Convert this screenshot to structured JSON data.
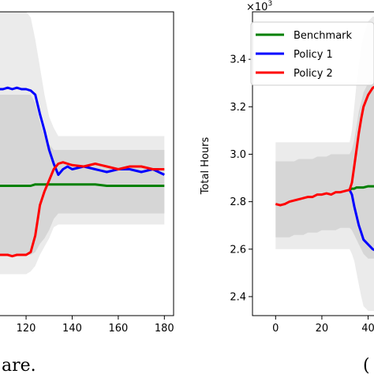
{
  "chart_data": [
    {
      "type": "line",
      "panel": "left",
      "title": "",
      "xlabel": "",
      "ylabel": "",
      "xlim": [
        108,
        184
      ],
      "ylim": [
        2.4,
        3.5
      ],
      "xticks": [
        120,
        140,
        160,
        180
      ],
      "xtick_labels": [
        "120",
        "140",
        "160",
        "180"
      ],
      "grid": false,
      "x": [
        108,
        110,
        112,
        114,
        116,
        118,
        120,
        122,
        124,
        126,
        128,
        130,
        132,
        134,
        136,
        138,
        140,
        145,
        150,
        155,
        160,
        165,
        170,
        175,
        180
      ],
      "series": [
        {
          "color": "#008000",
          "values": [
            2.87,
            2.87,
            2.87,
            2.87,
            2.87,
            2.87,
            2.87,
            2.87,
            2.875,
            2.875,
            2.875,
            2.875,
            2.875,
            2.875,
            2.875,
            2.875,
            2.875,
            2.875,
            2.875,
            2.87,
            2.87,
            2.87,
            2.87,
            2.87,
            2.87
          ]
        },
        {
          "color": "#0000ff",
          "values": [
            3.22,
            3.22,
            3.225,
            3.22,
            3.225,
            3.22,
            3.22,
            3.215,
            3.2,
            3.13,
            3.07,
            3.0,
            2.95,
            2.91,
            2.93,
            2.94,
            2.93,
            2.94,
            2.93,
            2.92,
            2.93,
            2.93,
            2.92,
            2.93,
            2.91
          ]
        },
        {
          "color": "#ff0000",
          "values": [
            2.62,
            2.62,
            2.62,
            2.615,
            2.62,
            2.62,
            2.62,
            2.63,
            2.69,
            2.8,
            2.85,
            2.89,
            2.93,
            2.95,
            2.955,
            2.95,
            2.945,
            2.94,
            2.95,
            2.94,
            2.93,
            2.94,
            2.94,
            2.93,
            2.93
          ]
        }
      ],
      "bands": [
        {
          "color": "#ebebeb",
          "lower": [
            2.55,
            2.55,
            2.55,
            2.55,
            2.55,
            2.55,
            2.55,
            2.56,
            2.58,
            2.62,
            2.65,
            2.68,
            2.72,
            2.73,
            2.73,
            2.73,
            2.73,
            2.73,
            2.73,
            2.73,
            2.73,
            2.73,
            2.73,
            2.73,
            2.73
          ],
          "upper": [
            3.5,
            3.5,
            3.5,
            3.5,
            3.5,
            3.5,
            3.5,
            3.48,
            3.4,
            3.3,
            3.2,
            3.12,
            3.08,
            3.05,
            3.05,
            3.05,
            3.05,
            3.05,
            3.05,
            3.05,
            3.05,
            3.05,
            3.05,
            3.05,
            3.05
          ]
        },
        {
          "color": "#d6d6d6",
          "lower": [
            2.62,
            2.62,
            2.62,
            2.62,
            2.62,
            2.62,
            2.62,
            2.62,
            2.63,
            2.66,
            2.68,
            2.71,
            2.75,
            2.77,
            2.77,
            2.77,
            2.77,
            2.77,
            2.77,
            2.77,
            2.77,
            2.77,
            2.77,
            2.77,
            2.77
          ],
          "upper": [
            3.2,
            3.2,
            3.2,
            3.2,
            3.2,
            3.2,
            3.2,
            3.2,
            3.17,
            3.1,
            3.05,
            3.02,
            3.0,
            3.0,
            3.0,
            3.0,
            3.0,
            3.0,
            3.0,
            3.0,
            3.0,
            3.0,
            3.0,
            3.0,
            3.0
          ]
        }
      ]
    },
    {
      "type": "line",
      "panel": "right",
      "title": "",
      "xlabel": "",
      "ylabel": "Total Hours",
      "y_multiplier": "×10",
      "y_multiplier_exp": "3",
      "xlim": [
        -10,
        48
      ],
      "ylim": [
        2.32,
        3.6
      ],
      "xticks": [
        0,
        20,
        40
      ],
      "xtick_labels": [
        "0",
        "20",
        "40"
      ],
      "yticks": [
        2.4,
        2.6,
        2.8,
        3.0,
        3.2,
        3.4
      ],
      "ytick_labels": [
        "2.4",
        "2.6",
        "2.8",
        "3.0",
        "3.2",
        "3.4"
      ],
      "grid": false,
      "legend": {
        "position": "top-right",
        "entries": [
          "Benchmark",
          "Policy 1",
          "Policy 2"
        ]
      },
      "x": [
        0,
        2,
        4,
        6,
        8,
        10,
        12,
        14,
        16,
        18,
        20,
        22,
        24,
        26,
        28,
        30,
        32,
        33,
        34,
        35,
        36,
        37,
        38,
        40,
        42,
        44,
        46,
        48
      ],
      "series": [
        {
          "name": "Benchmark",
          "color": "#008000",
          "values": [
            null,
            null,
            null,
            null,
            null,
            null,
            null,
            null,
            null,
            null,
            null,
            null,
            null,
            null,
            null,
            null,
            2.85,
            2.855,
            2.855,
            2.86,
            2.86,
            2.86,
            2.86,
            2.865,
            2.865,
            2.865,
            2.87,
            2.87
          ]
        },
        {
          "name": "Policy 1",
          "color": "#0000ff",
          "values": [
            null,
            null,
            null,
            null,
            null,
            null,
            null,
            null,
            null,
            null,
            null,
            null,
            null,
            null,
            null,
            null,
            2.85,
            2.83,
            2.78,
            2.74,
            2.7,
            2.67,
            2.64,
            2.62,
            2.6,
            2.59,
            2.58,
            2.58
          ]
        },
        {
          "name": "Policy 2",
          "color": "#ff0000",
          "values": [
            2.79,
            2.785,
            2.79,
            2.8,
            2.805,
            2.81,
            2.815,
            2.82,
            2.82,
            2.83,
            2.83,
            2.835,
            2.83,
            2.84,
            2.84,
            2.845,
            2.85,
            2.88,
            2.95,
            3.02,
            3.09,
            3.15,
            3.2,
            3.25,
            3.28,
            3.29,
            3.3,
            3.3
          ]
        }
      ],
      "bands": [
        {
          "color": "#ebebeb",
          "lower": [
            2.6,
            2.6,
            2.6,
            2.6,
            2.6,
            2.6,
            2.6,
            2.6,
            2.6,
            2.6,
            2.6,
            2.6,
            2.6,
            2.6,
            2.6,
            2.6,
            2.6,
            2.58,
            2.55,
            2.5,
            2.45,
            2.4,
            2.36,
            2.34,
            2.34,
            2.34,
            2.34,
            2.34
          ],
          "upper": [
            3.05,
            3.05,
            3.05,
            3.05,
            3.05,
            3.05,
            3.05,
            3.05,
            3.05,
            3.05,
            3.05,
            3.05,
            3.05,
            3.05,
            3.05,
            3.05,
            3.05,
            3.1,
            3.2,
            3.3,
            3.38,
            3.45,
            3.5,
            3.56,
            3.58,
            3.58,
            3.58,
            3.58
          ]
        },
        {
          "color": "#d6d6d6",
          "lower": [
            2.65,
            2.65,
            2.65,
            2.65,
            2.66,
            2.66,
            2.66,
            2.67,
            2.67,
            2.67,
            2.68,
            2.68,
            2.68,
            2.68,
            2.69,
            2.69,
            2.69,
            2.68,
            2.66,
            2.64,
            2.62,
            2.6,
            2.58,
            2.56,
            2.56,
            2.56,
            2.56,
            2.56
          ],
          "upper": [
            2.97,
            2.97,
            2.97,
            2.97,
            2.97,
            2.98,
            2.98,
            2.98,
            2.98,
            2.99,
            2.99,
            2.99,
            3.0,
            3.0,
            3.0,
            3.0,
            3.0,
            3.02,
            3.06,
            3.12,
            3.18,
            3.22,
            3.26,
            3.3,
            3.32,
            3.32,
            3.32,
            3.32
          ]
        }
      ]
    }
  ],
  "captions": {
    "left": "are.",
    "right": "("
  }
}
